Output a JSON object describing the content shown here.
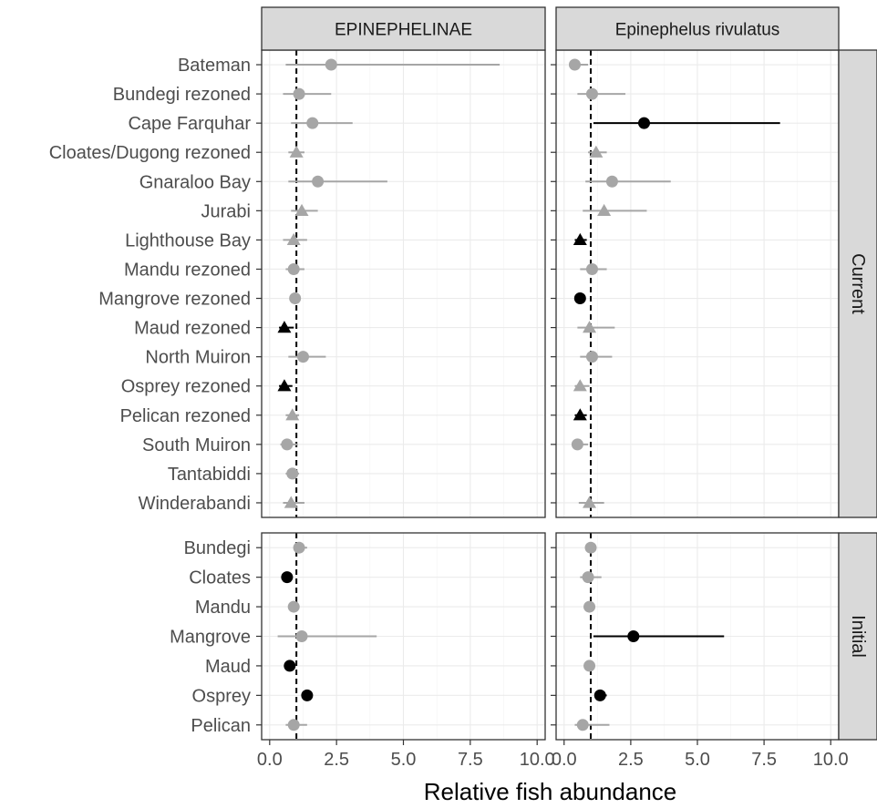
{
  "chart_data": {
    "type": "scatter",
    "xlabel": "Relative fish abundance",
    "xlim": [
      -0.3,
      10.3
    ],
    "xticks": [
      0,
      2.5,
      5,
      7.5,
      10
    ],
    "xtick_labels": [
      "0.0",
      "2.5",
      "5.0",
      "7.5",
      "10.0"
    ],
    "reference_line_x": 1,
    "grid": true,
    "colors": {
      "significant": "#000000",
      "not_significant": "#a6a6a6",
      "strip": "#d9d9d9"
    },
    "panels": [
      "EPINEPHELINAE",
      "Epinephelus rivulatus"
    ],
    "rows": [
      {
        "label": "Current",
        "sites": [
          "Bateman",
          "Bundegi rezoned",
          "Cape Farquhar",
          "Cloates/Dugong rezoned",
          "Gnaraloo Bay",
          "Jurabi",
          "Lighthouse Bay",
          "Mandu rezoned",
          "Mangrove rezoned",
          "Maud rezoned",
          "North Muiron",
          "Osprey rezoned",
          "Pelican rezoned",
          "South Muiron",
          "Tantabiddi",
          "Winderabandi"
        ],
        "data": [
          [
            {
              "shape": "circle",
              "sig": false,
              "est": 2.3,
              "lo": 0.6,
              "hi": 8.6
            },
            {
              "shape": "circle",
              "sig": false,
              "est": 1.1,
              "lo": 0.5,
              "hi": 2.3
            },
            {
              "shape": "circle",
              "sig": false,
              "est": 1.6,
              "lo": 0.8,
              "hi": 3.1
            },
            {
              "shape": "triangle",
              "sig": false,
              "est": 1.0,
              "lo": 0.7,
              "hi": 1.3
            },
            {
              "shape": "circle",
              "sig": false,
              "est": 1.8,
              "lo": 0.7,
              "hi": 4.4
            },
            {
              "shape": "triangle",
              "sig": false,
              "est": 1.2,
              "lo": 0.8,
              "hi": 1.8
            },
            {
              "shape": "triangle",
              "sig": false,
              "est": 0.9,
              "lo": 0.5,
              "hi": 1.4
            },
            {
              "shape": "circle",
              "sig": false,
              "est": 0.9,
              "lo": 0.6,
              "hi": 1.3
            },
            {
              "shape": "circle",
              "sig": false,
              "est": 0.95,
              "lo": 0.75,
              "hi": 1.15
            },
            {
              "shape": "triangle",
              "sig": true,
              "est": 0.55,
              "lo": 0.35,
              "hi": 0.9
            },
            {
              "shape": "circle",
              "sig": false,
              "est": 1.25,
              "lo": 0.7,
              "hi": 2.1
            },
            {
              "shape": "triangle",
              "sig": true,
              "est": 0.55,
              "lo": 0.35,
              "hi": 0.85
            },
            {
              "shape": "triangle",
              "sig": false,
              "est": 0.85,
              "lo": 0.6,
              "hi": 1.1
            },
            {
              "shape": "circle",
              "sig": false,
              "est": 0.65,
              "lo": 0.4,
              "hi": 1.05
            },
            {
              "shape": "circle",
              "sig": false,
              "est": 0.85,
              "lo": 0.6,
              "hi": 1.1
            },
            {
              "shape": "triangle",
              "sig": false,
              "est": 0.8,
              "lo": 0.5,
              "hi": 1.3
            }
          ],
          [
            {
              "shape": "circle",
              "sig": false,
              "est": 0.4,
              "lo": 0.3,
              "hi": 0.9
            },
            {
              "shape": "circle",
              "sig": false,
              "est": 1.05,
              "lo": 0.5,
              "hi": 2.3
            },
            {
              "shape": "circle",
              "sig": true,
              "est": 3.0,
              "lo": 1.1,
              "hi": 8.1
            },
            {
              "shape": "triangle",
              "sig": false,
              "est": 1.2,
              "lo": 0.9,
              "hi": 1.6
            },
            {
              "shape": "circle",
              "sig": false,
              "est": 1.8,
              "lo": 0.8,
              "hi": 4.0
            },
            {
              "shape": "triangle",
              "sig": false,
              "est": 1.5,
              "lo": 0.7,
              "hi": 3.1
            },
            {
              "shape": "triangle",
              "sig": true,
              "est": 0.6,
              "lo": 0.4,
              "hi": 0.85
            },
            {
              "shape": "circle",
              "sig": false,
              "est": 1.05,
              "lo": 0.6,
              "hi": 1.6
            },
            {
              "shape": "circle",
              "sig": true,
              "est": 0.6,
              "lo": 0.4,
              "hi": 0.8
            },
            {
              "shape": "triangle",
              "sig": false,
              "est": 0.95,
              "lo": 0.5,
              "hi": 1.9
            },
            {
              "shape": "circle",
              "sig": false,
              "est": 1.05,
              "lo": 0.6,
              "hi": 1.8
            },
            {
              "shape": "triangle",
              "sig": false,
              "est": 0.6,
              "lo": 0.4,
              "hi": 0.95
            },
            {
              "shape": "triangle",
              "sig": true,
              "est": 0.6,
              "lo": 0.4,
              "hi": 0.85
            },
            {
              "shape": "circle",
              "sig": false,
              "est": 0.5,
              "lo": 0.35,
              "hi": 0.9
            },
            null,
            {
              "shape": "triangle",
              "sig": false,
              "est": 0.95,
              "lo": 0.55,
              "hi": 1.5
            }
          ]
        ]
      },
      {
        "label": "Initial",
        "sites": [
          "Bundegi",
          "Cloates",
          "Mandu",
          "Mangrove",
          "Maud",
          "Osprey",
          "Pelican"
        ],
        "data": [
          [
            {
              "shape": "circle",
              "sig": false,
              "est": 1.1,
              "lo": 0.9,
              "hi": 1.4
            },
            {
              "shape": "circle",
              "sig": true,
              "est": 0.65,
              "lo": 0.5,
              "hi": 0.85
            },
            {
              "shape": "circle",
              "sig": false,
              "est": 0.9,
              "lo": 0.7,
              "hi": 1.1
            },
            {
              "shape": "circle",
              "sig": false,
              "est": 1.2,
              "lo": 0.3,
              "hi": 4.0
            },
            {
              "shape": "circle",
              "sig": true,
              "est": 0.75,
              "lo": 0.6,
              "hi": 0.9
            },
            {
              "shape": "circle",
              "sig": true,
              "est": 1.4,
              "lo": 1.2,
              "hi": 1.6
            },
            {
              "shape": "circle",
              "sig": false,
              "est": 0.9,
              "lo": 0.6,
              "hi": 1.4
            }
          ],
          [
            {
              "shape": "circle",
              "sig": false,
              "est": 1.0,
              "lo": 0.85,
              "hi": 1.2
            },
            {
              "shape": "circle",
              "sig": false,
              "est": 0.9,
              "lo": 0.6,
              "hi": 1.4
            },
            {
              "shape": "circle",
              "sig": false,
              "est": 0.95,
              "lo": 0.8,
              "hi": 1.1
            },
            {
              "shape": "circle",
              "sig": true,
              "est": 2.6,
              "lo": 1.1,
              "hi": 6.0
            },
            {
              "shape": "circle",
              "sig": false,
              "est": 0.95,
              "lo": 0.8,
              "hi": 1.1
            },
            {
              "shape": "circle",
              "sig": true,
              "est": 1.35,
              "lo": 1.15,
              "hi": 1.6
            },
            {
              "shape": "circle",
              "sig": false,
              "est": 0.7,
              "lo": 0.4,
              "hi": 1.7
            }
          ]
        ]
      }
    ]
  }
}
